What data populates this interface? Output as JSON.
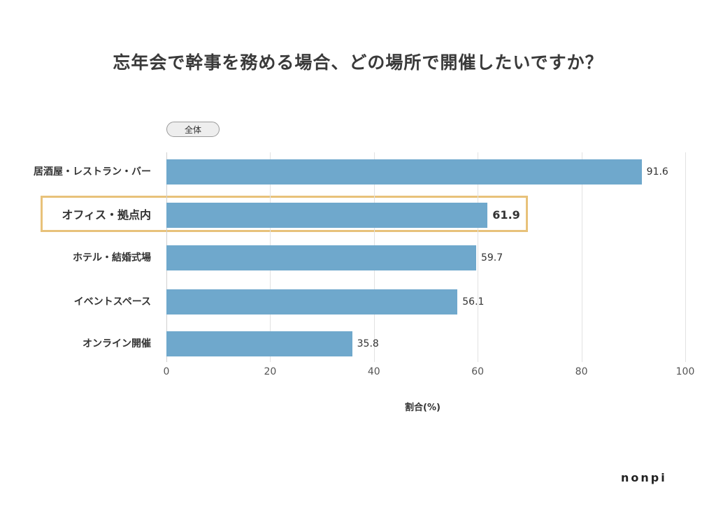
{
  "title": "忘年会で幹事を務める場合、どの場所で開催したいですか？",
  "filter_pill": "全体",
  "brand": "nonpi",
  "colors": {
    "bar": "#6fa8cc",
    "highlight_border": "#e8c27a",
    "grid": "#e2e2e2"
  },
  "chart_data": {
    "type": "bar",
    "orientation": "horizontal",
    "title": "忘年会で幹事を務める場合、どの場所で開催したいですか？",
    "subtitle": "全体",
    "categories": [
      "居酒屋・レストラン・バー",
      "オフィス・拠点内",
      "ホテル・結婚式場",
      "イベントスペース",
      "オンライン開催"
    ],
    "values": [
      91.6,
      61.9,
      59.7,
      56.1,
      35.8
    ],
    "value_labels": [
      "91.6",
      "61.9",
      "59.7",
      "56.1",
      "35.8"
    ],
    "highlighted_category": "オフィス・拠点内",
    "xlabel": "割合(%)",
    "ylabel": "",
    "xlim": [
      0,
      100
    ],
    "xticks": [
      "0",
      "20",
      "40",
      "60",
      "80",
      "100"
    ],
    "grid": true,
    "legend": null
  }
}
